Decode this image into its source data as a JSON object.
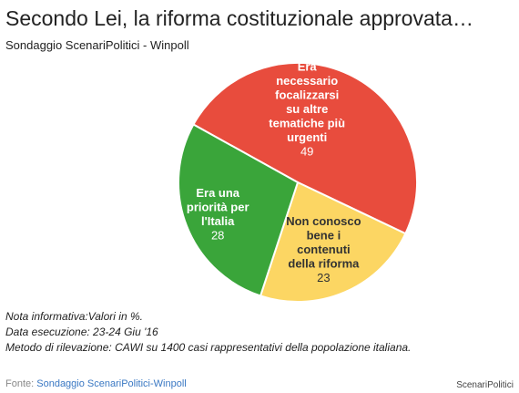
{
  "header": {
    "title": "Secondo Lei, la riforma costituzionale approvata…",
    "subtitle": "Sondaggio ScenariPolitici - Winpoll"
  },
  "notes": [
    "Nota informativa:Valori in %.",
    "Data esecuzione: 23-24 Giu '16",
    "Metodo di rilevazione: CAWI su 1400 casi rappresentativi della popolazione italiana."
  ],
  "footer": {
    "source_prefix": "Fonte: ",
    "source_link": "Sondaggio ScenariPolitici-Winpoll",
    "credit": "ScenariPolitici"
  },
  "colors": {
    "red": "#e84c3d",
    "green": "#3aa53a",
    "yellow": "#fcd663",
    "label_dark": "#333333",
    "label_light": "#ffffff"
  },
  "chart_data": {
    "type": "pie",
    "title": "Secondo Lei, la riforma costituzionale approvata…",
    "subtitle": "Sondaggio ScenariPolitici - Winpoll",
    "unit": "%",
    "slices": [
      {
        "label": "Era necessario focalizzarsi su altre tematiche più urgenti",
        "label_lines": [
          "Era",
          "necessario",
          "focalizzarsi",
          "su altre",
          "tematiche più",
          "urgenti"
        ],
        "value": 49,
        "color": "#e84c3d"
      },
      {
        "label": "Non conosco bene i contenuti della riforma",
        "label_lines": [
          "Non conosco",
          "bene i",
          "contenuti",
          "della riforma"
        ],
        "value": 23,
        "color": "#fcd663"
      },
      {
        "label": "Era una priorità per l'Italia",
        "label_lines": [
          "Era una",
          "priorità per",
          "l'Italia"
        ],
        "value": 28,
        "color": "#3aa53a"
      }
    ]
  }
}
